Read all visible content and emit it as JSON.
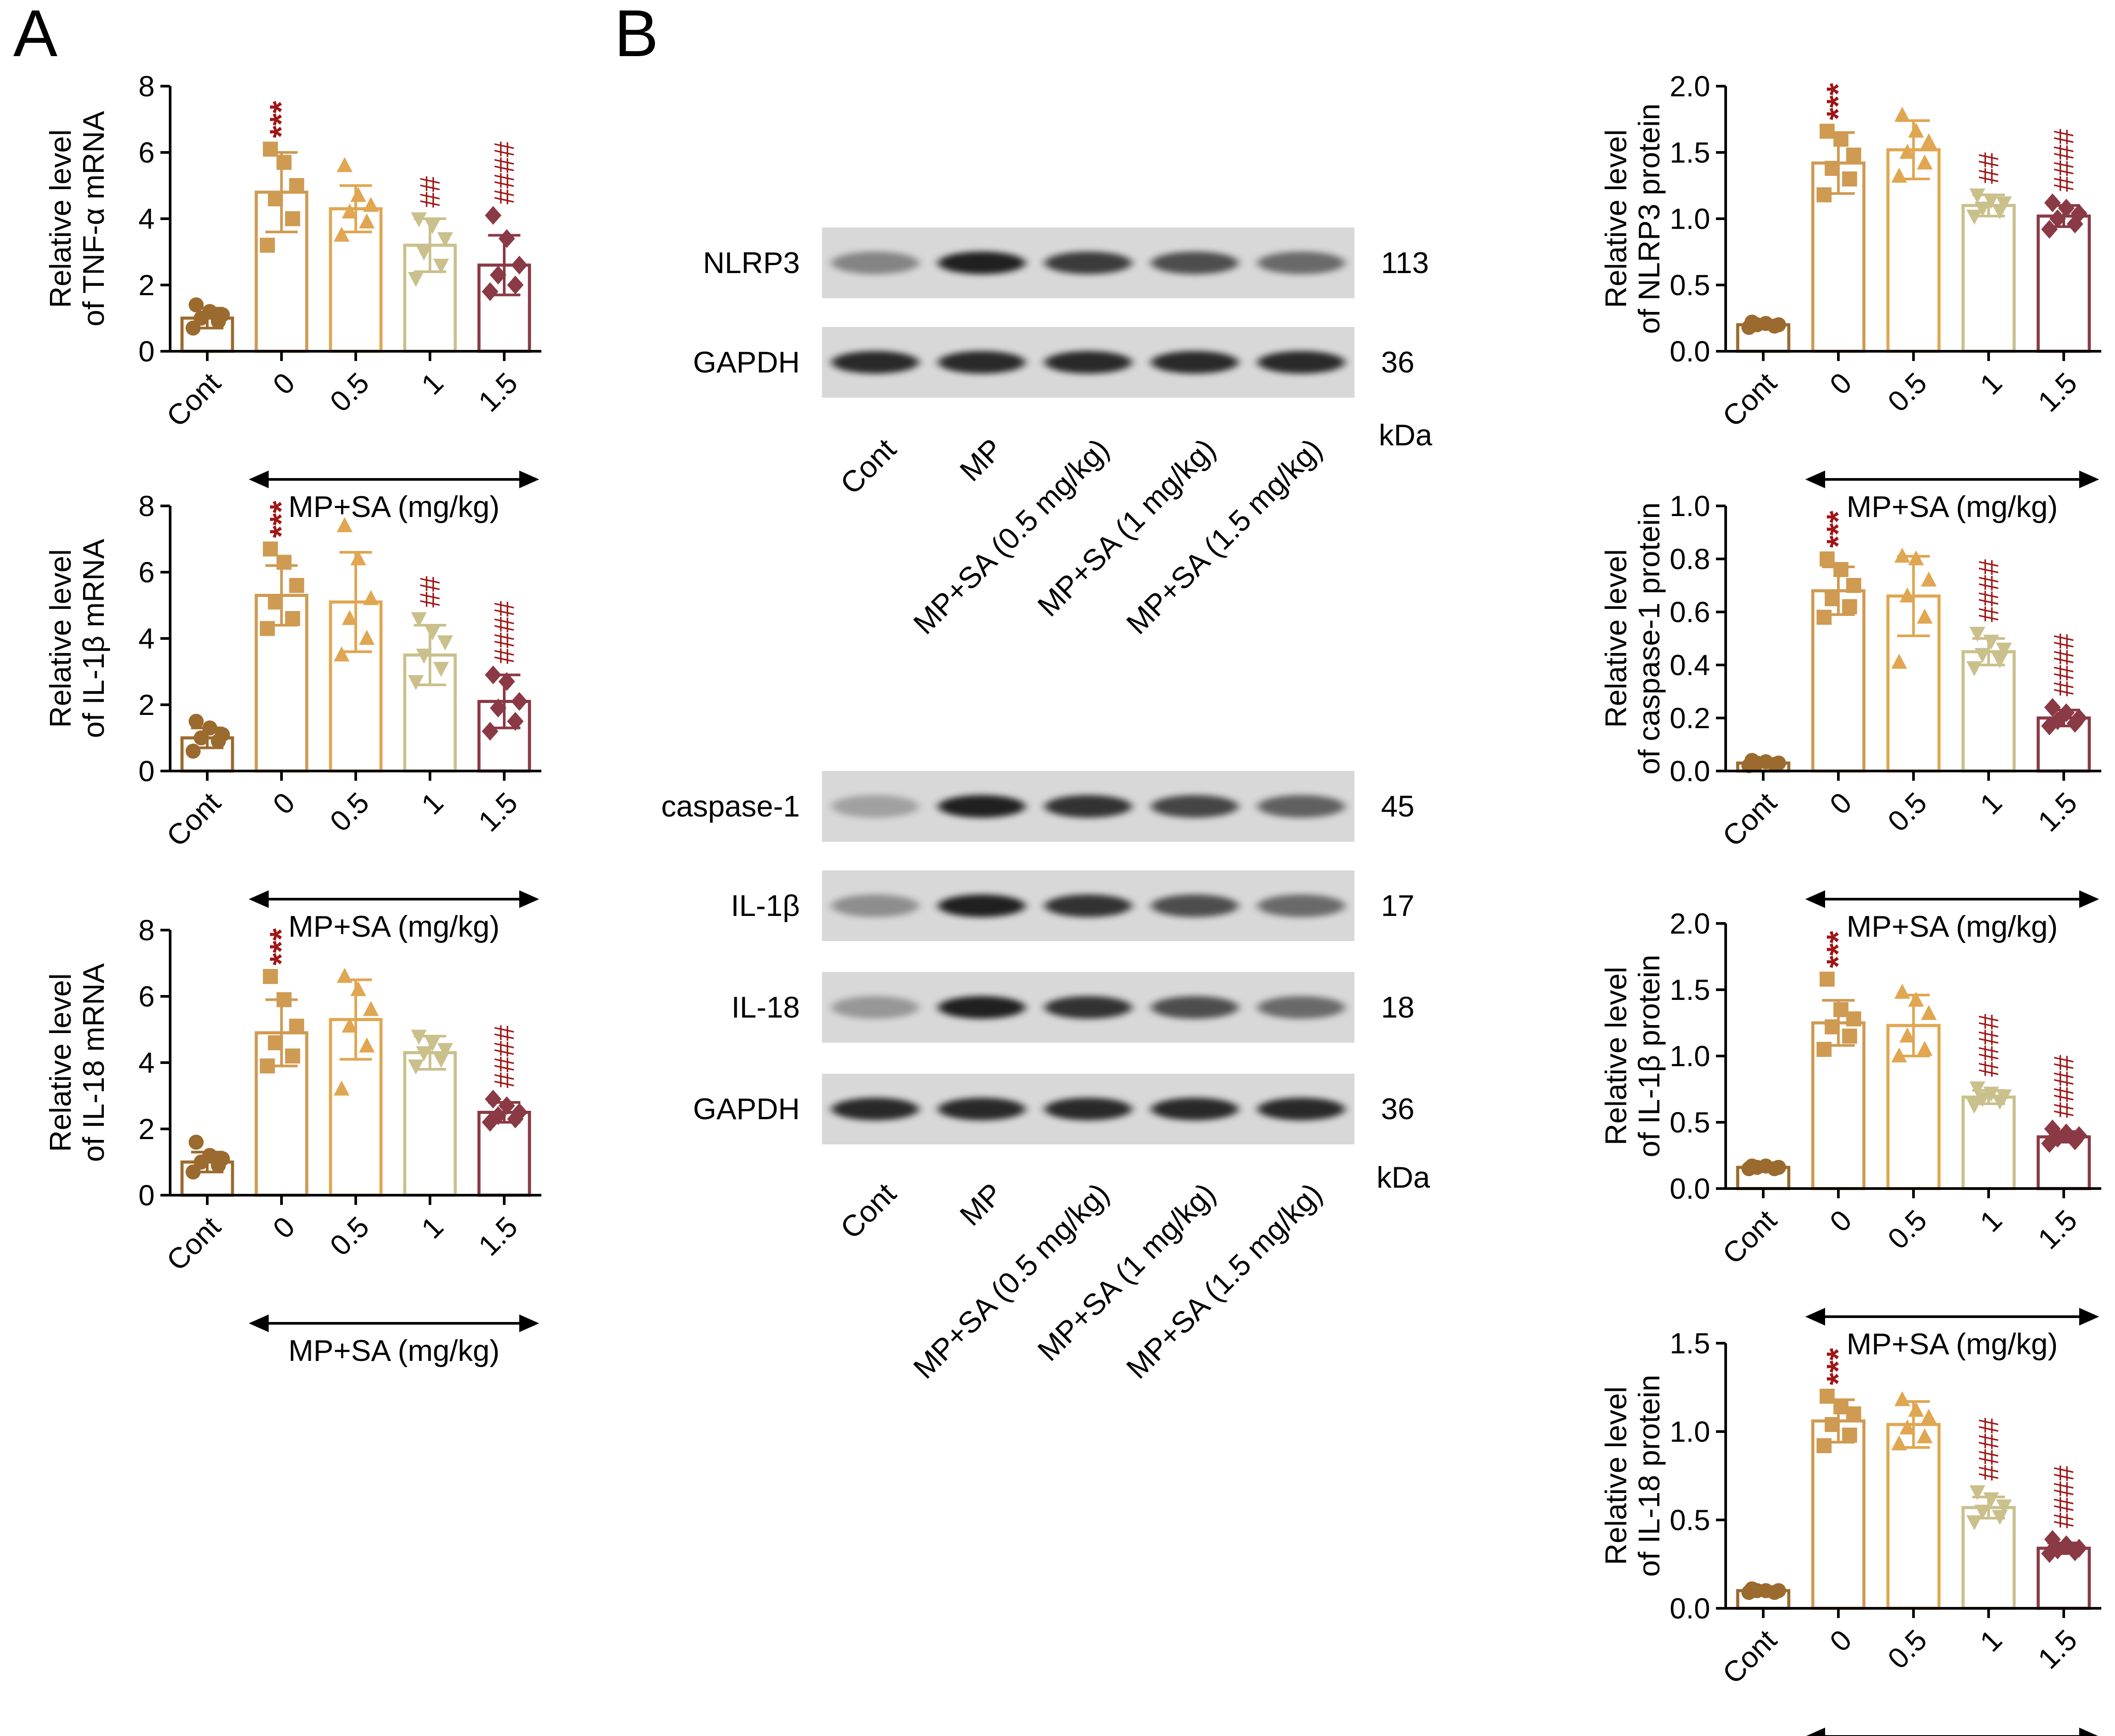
{
  "panel_labels": [
    "A",
    "B"
  ],
  "group_label": "MP+SA (mg/kg)",
  "category_labels": [
    "Cont",
    "0",
    "0.5",
    "1",
    "1.5"
  ],
  "colors": {
    "cont": "#9b6a2e",
    "mpsa_0": "#cf9a52",
    "mpsa_05": "#e0a651",
    "mpsa_1": "#c9c08c",
    "mpsa_15": "#8a3a45",
    "significance": "#a01515"
  },
  "chart_data": [
    {
      "type": "bar",
      "panel": "A",
      "ylabel_line1": "Relative level",
      "ylabel_line2": "of TNF-α mRNA",
      "categories": [
        "Cont",
        "0",
        "0.5",
        "1",
        "1.5"
      ],
      "values": [
        1.0,
        4.8,
        4.3,
        3.2,
        2.6
      ],
      "errors": [
        0.3,
        1.2,
        0.7,
        0.8,
        0.9
      ],
      "points": [
        [
          0.7,
          0.9,
          1.0,
          1.1,
          1.2,
          1.4
        ],
        [
          3.2,
          4.0,
          4.6,
          5.0,
          5.7,
          6.1
        ],
        [
          3.5,
          3.9,
          4.2,
          4.4,
          4.7,
          5.6
        ],
        [
          2.2,
          2.6,
          3.0,
          3.4,
          3.8,
          4.0
        ],
        [
          1.8,
          2.0,
          2.3,
          2.6,
          3.4,
          4.1
        ]
      ],
      "markers": [
        "circle",
        "square",
        "triangle",
        "triangle-down",
        "diamond"
      ],
      "significance": [
        "",
        "***",
        "",
        "##",
        "####"
      ],
      "ylim": [
        0,
        8
      ],
      "yticks": [
        "0",
        "2",
        "4",
        "6",
        "8"
      ],
      "ytick_values": [
        0,
        2,
        4,
        6,
        8
      ]
    },
    {
      "type": "bar",
      "panel": "A",
      "ylabel_line1": "Relative level",
      "ylabel_line2": "of IL-1β mRNA",
      "categories": [
        "Cont",
        "0",
        "0.5",
        "1",
        "1.5"
      ],
      "values": [
        1.0,
        5.3,
        5.1,
        3.5,
        2.1
      ],
      "errors": [
        0.3,
        0.9,
        1.5,
        0.9,
        0.8
      ],
      "points": [
        [
          0.6,
          0.9,
          1.0,
          1.1,
          1.3,
          1.5
        ],
        [
          4.3,
          4.6,
          5.1,
          5.6,
          6.3,
          6.7
        ],
        [
          3.5,
          4.0,
          4.6,
          5.2,
          6.4,
          7.4
        ],
        [
          2.7,
          3.1,
          3.5,
          3.9,
          4.2,
          4.6
        ],
        [
          1.2,
          1.5,
          1.9,
          2.1,
          2.7,
          2.9
        ]
      ],
      "markers": [
        "circle",
        "square",
        "triangle",
        "triangle-down",
        "diamond"
      ],
      "significance": [
        "",
        "***",
        "",
        "##",
        "####"
      ],
      "ylim": [
        0,
        8
      ],
      "yticks": [
        "0",
        "2",
        "4",
        "6",
        "8"
      ],
      "ytick_values": [
        0,
        2,
        4,
        6,
        8
      ]
    },
    {
      "type": "bar",
      "panel": "A",
      "ylabel_line1": "Relative level",
      "ylabel_line2": "of IL-18 mRNA",
      "categories": [
        "Cont",
        "0",
        "0.5",
        "1",
        "1.5"
      ],
      "values": [
        1.0,
        4.9,
        5.3,
        4.3,
        2.5
      ],
      "errors": [
        0.3,
        1.0,
        1.2,
        0.5,
        0.3
      ],
      "points": [
        [
          0.7,
          0.9,
          1.0,
          1.1,
          1.2,
          1.6
        ],
        [
          3.9,
          4.2,
          4.6,
          5.1,
          5.9,
          6.6
        ],
        [
          3.2,
          4.5,
          5.1,
          5.6,
          6.2,
          6.6
        ],
        [
          3.9,
          4.1,
          4.3,
          4.4,
          4.6,
          4.8
        ],
        [
          2.2,
          2.3,
          2.4,
          2.5,
          2.7,
          2.9
        ]
      ],
      "markers": [
        "circle",
        "square",
        "triangle",
        "triangle-down",
        "diamond"
      ],
      "significance": [
        "",
        "***",
        "",
        "",
        "####"
      ],
      "ylim": [
        0,
        8
      ],
      "yticks": [
        "0",
        "2",
        "4",
        "6",
        "8"
      ],
      "ytick_values": [
        0,
        2,
        4,
        6,
        8
      ]
    },
    {
      "type": "bar",
      "panel": "B",
      "ylabel_line1": "Relative level",
      "ylabel_line2": "of NLRP3 protein",
      "categories": [
        "Cont",
        "0",
        "0.5",
        "1",
        "1.5"
      ],
      "values": [
        0.2,
        1.42,
        1.52,
        1.1,
        1.02
      ],
      "errors": [
        0.02,
        0.23,
        0.22,
        0.08,
        0.08
      ],
      "points": [
        [
          0.18,
          0.19,
          0.2,
          0.2,
          0.21,
          0.22
        ],
        [
          1.18,
          1.3,
          1.38,
          1.48,
          1.6,
          1.66
        ],
        [
          1.32,
          1.42,
          1.5,
          1.58,
          1.66,
          1.78
        ],
        [
          1.02,
          1.06,
          1.08,
          1.12,
          1.14,
          1.18
        ],
        [
          0.92,
          0.96,
          1.0,
          1.04,
          1.08,
          1.12
        ]
      ],
      "markers": [
        "circle",
        "square",
        "triangle",
        "triangle-down",
        "diamond"
      ],
      "significance": [
        "",
        "***",
        "",
        "##",
        "####"
      ],
      "ylim": [
        0,
        2.0
      ],
      "yticks": [
        "0.0",
        "0.5",
        "1.0",
        "1.5",
        "2.0"
      ],
      "ytick_values": [
        0,
        0.5,
        1.0,
        1.5,
        2.0
      ]
    },
    {
      "type": "bar",
      "panel": "B",
      "ylabel_line1": "Relative level",
      "ylabel_line2": "of caspase-1 protein",
      "categories": [
        "Cont",
        "0",
        "0.5",
        "1",
        "1.5"
      ],
      "values": [
        0.03,
        0.68,
        0.66,
        0.45,
        0.2
      ],
      "errors": [
        0.01,
        0.09,
        0.15,
        0.05,
        0.03
      ],
      "points": [
        [
          0.02,
          0.025,
          0.03,
          0.03,
          0.035,
          0.04
        ],
        [
          0.58,
          0.62,
          0.65,
          0.7,
          0.76,
          0.8
        ],
        [
          0.41,
          0.58,
          0.66,
          0.72,
          0.8,
          0.81
        ],
        [
          0.39,
          0.42,
          0.44,
          0.46,
          0.49,
          0.52
        ],
        [
          0.17,
          0.18,
          0.19,
          0.2,
          0.22,
          0.24
        ]
      ],
      "markers": [
        "circle",
        "square",
        "triangle",
        "triangle-down",
        "diamond"
      ],
      "significance": [
        "",
        "***",
        "",
        "####",
        "####"
      ],
      "ylim": [
        0,
        1.0
      ],
      "yticks": [
        "0.0",
        "0.2",
        "0.4",
        "0.6",
        "0.8",
        "1.0"
      ],
      "ytick_values": [
        0,
        0.2,
        0.4,
        0.6,
        0.8,
        1.0
      ]
    },
    {
      "type": "bar",
      "panel": "B",
      "ylabel_line1": "Relative level",
      "ylabel_line2": "of IL-1β protein",
      "categories": [
        "Cont",
        "0",
        "0.5",
        "1",
        "1.5"
      ],
      "values": [
        0.16,
        1.25,
        1.23,
        0.69,
        0.39
      ],
      "errors": [
        0.01,
        0.17,
        0.23,
        0.05,
        0.04
      ],
      "points": [
        [
          0.15,
          0.15,
          0.16,
          0.16,
          0.17,
          0.17
        ],
        [
          1.05,
          1.15,
          1.22,
          1.28,
          1.35,
          1.58
        ],
        [
          1.0,
          1.05,
          1.15,
          1.32,
          1.42,
          1.48
        ],
        [
          0.63,
          0.66,
          0.68,
          0.7,
          0.72,
          0.76
        ],
        [
          0.34,
          0.36,
          0.38,
          0.4,
          0.42,
          0.45
        ]
      ],
      "markers": [
        "circle",
        "square",
        "triangle",
        "triangle-down",
        "diamond"
      ],
      "significance": [
        "",
        "***",
        "",
        "####",
        "####"
      ],
      "ylim": [
        0,
        2.0
      ],
      "yticks": [
        "0.0",
        "0.5",
        "1.0",
        "1.5",
        "2.0"
      ],
      "ytick_values": [
        0,
        0.5,
        1.0,
        1.5,
        2.0
      ]
    },
    {
      "type": "bar",
      "panel": "B",
      "ylabel_line1": "Relative level",
      "ylabel_line2": "of IL-18 protein",
      "categories": [
        "Cont",
        "0",
        "0.5",
        "1",
        "1.5"
      ],
      "values": [
        0.1,
        1.06,
        1.04,
        0.57,
        0.34
      ],
      "errors": [
        0.01,
        0.12,
        0.13,
        0.06,
        0.03
      ],
      "points": [
        [
          0.09,
          0.09,
          0.1,
          0.1,
          0.1,
          0.11
        ],
        [
          0.92,
          0.98,
          1.04,
          1.1,
          1.14,
          1.2
        ],
        [
          0.93,
          0.97,
          1.02,
          1.08,
          1.12,
          1.18
        ],
        [
          0.49,
          0.52,
          0.55,
          0.58,
          0.62,
          0.66
        ],
        [
          0.31,
          0.32,
          0.33,
          0.34,
          0.36,
          0.39
        ]
      ],
      "markers": [
        "circle",
        "square",
        "triangle",
        "triangle-down",
        "diamond"
      ],
      "significance": [
        "",
        "***",
        "",
        "####",
        "####"
      ],
      "ylim": [
        0,
        1.5
      ],
      "yticks": [
        "0.0",
        "0.5",
        "1.0",
        "1.5"
      ],
      "ytick_values": [
        0,
        0.5,
        1.0,
        1.5
      ]
    }
  ],
  "blots": {
    "lanes": [
      "Cont",
      "MP",
      "MP+SA (0.5 mg/kg)",
      "MP+SA (1 mg/kg)",
      "MP+SA (1.5 mg/kg)"
    ],
    "unit": "kDa",
    "group1": [
      {
        "name": "NLRP3",
        "kda": "113",
        "intensity": [
          0.45,
          1.0,
          0.85,
          0.75,
          0.6
        ]
      },
      {
        "name": "GAPDH",
        "kda": "36",
        "intensity": [
          0.95,
          0.95,
          0.95,
          0.95,
          0.95
        ]
      }
    ],
    "group2": [
      {
        "name": "caspase-1",
        "kda": "45",
        "intensity": [
          0.3,
          1.0,
          0.9,
          0.8,
          0.65
        ]
      },
      {
        "name": "IL-1β",
        "kda": "17",
        "intensity": [
          0.4,
          1.0,
          0.9,
          0.75,
          0.6
        ]
      },
      {
        "name": "IL-18",
        "kda": "18",
        "intensity": [
          0.35,
          1.0,
          0.9,
          0.75,
          0.6
        ]
      },
      {
        "name": "GAPDH",
        "kda": "36",
        "intensity": [
          0.95,
          0.95,
          0.95,
          0.95,
          0.95
        ]
      }
    ]
  }
}
